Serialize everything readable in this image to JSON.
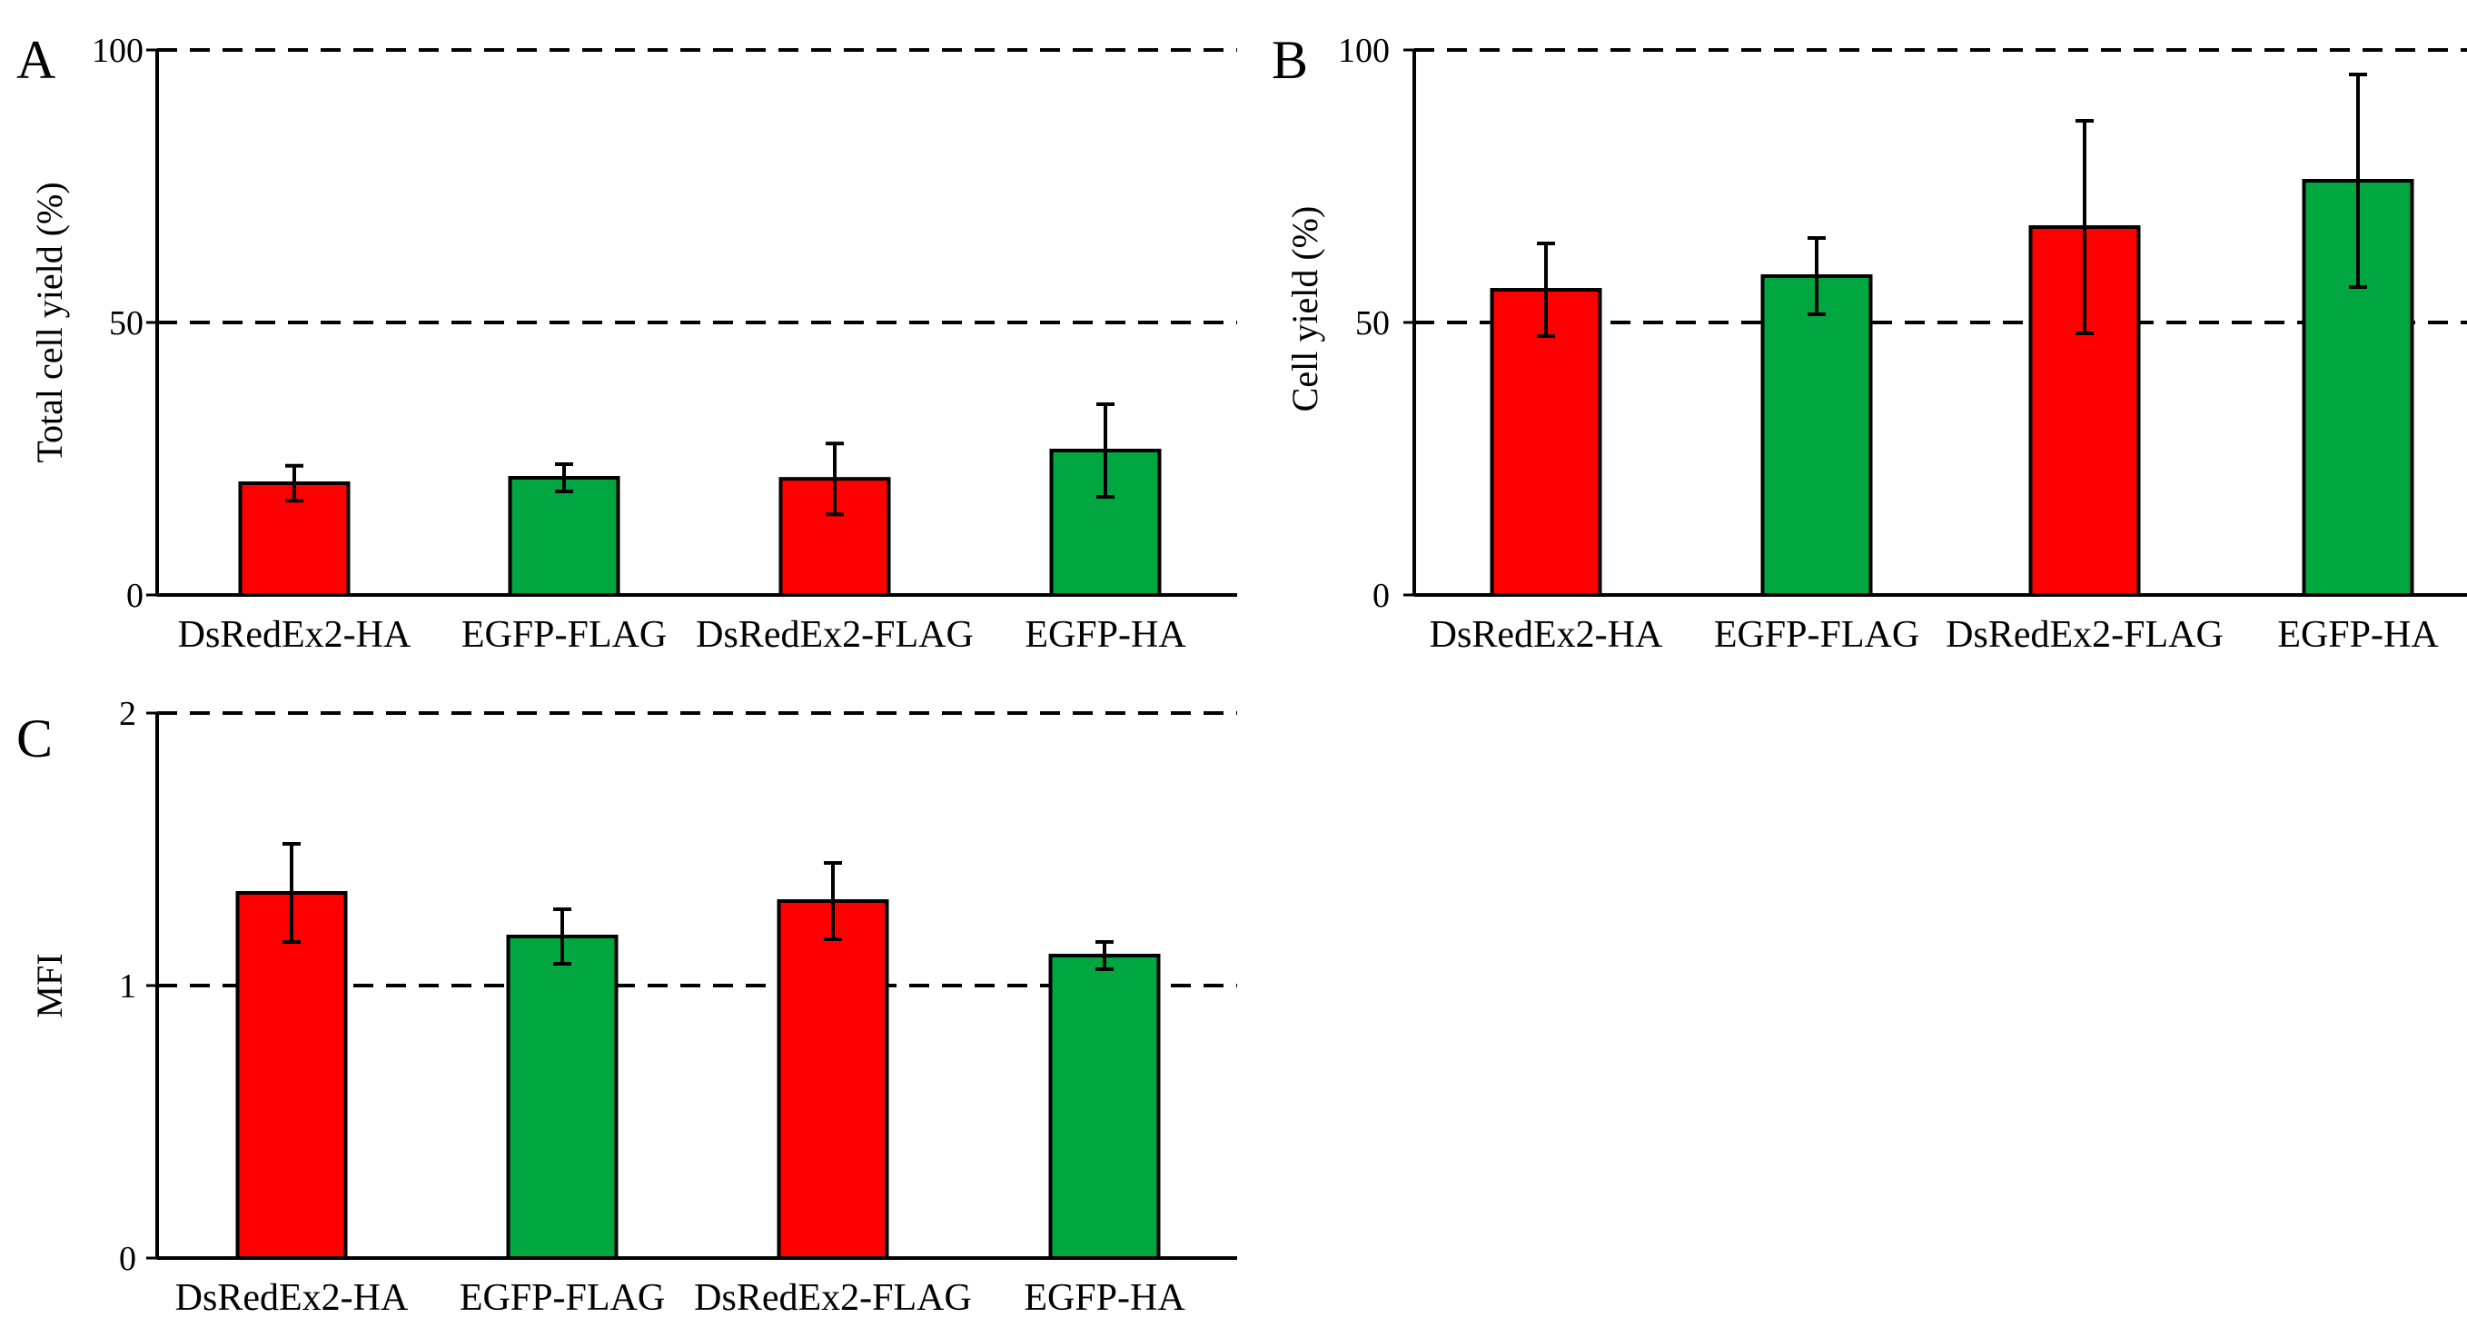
{
  "colors": {
    "red": "#ff0000",
    "green": "#00a63f",
    "axis": "#000000",
    "grid": "#000000"
  },
  "chart_data": [
    {
      "panel_label": "A",
      "type": "bar",
      "ylabel": "Total cell yield (%)",
      "ylim": [
        0,
        100
      ],
      "yticks": [
        "0",
        "50",
        "100"
      ],
      "ytick_values": [
        0,
        50,
        100
      ],
      "dashed_gridlines": [
        50,
        100
      ],
      "categories": [
        "DsRedEx2-HA",
        "EGFP-FLAG",
        "DsRedEx2-FLAG",
        "EGFP-HA"
      ],
      "values": [
        20.5,
        21.5,
        21.3,
        26.5
      ],
      "errors": [
        3.2,
        2.5,
        6.5,
        8.5
      ],
      "bar_colors": [
        "red",
        "green",
        "red",
        "green"
      ]
    },
    {
      "panel_label": "B",
      "type": "bar",
      "ylabel": "Cell yield (%)",
      "ylim": [
        0,
        100
      ],
      "yticks": [
        "0",
        "50",
        "100"
      ],
      "ytick_values": [
        0,
        50,
        100
      ],
      "dashed_gridlines": [
        50,
        100
      ],
      "categories": [
        "DsRedEx2-HA",
        "EGFP-FLAG",
        "DsRedEx2-FLAG",
        "EGFP-HA"
      ],
      "values": [
        56,
        58.5,
        67.5,
        76
      ],
      "errors": [
        8.5,
        7,
        19.5,
        19.5
      ],
      "bar_colors": [
        "red",
        "green",
        "red",
        "green"
      ]
    },
    {
      "panel_label": "C",
      "type": "bar",
      "ylabel": "MFI",
      "ylim": [
        0,
        2
      ],
      "yticks": [
        "0",
        "1",
        "2"
      ],
      "ytick_values": [
        0,
        1,
        2
      ],
      "dashed_gridlines": [
        1,
        2
      ],
      "categories": [
        "DsRedEx2-HA",
        "EGFP-FLAG",
        "DsRedEx2-FLAG",
        "EGFP-HA"
      ],
      "values": [
        1.34,
        1.18,
        1.31,
        1.11
      ],
      "errors": [
        0.18,
        0.1,
        0.14,
        0.05
      ],
      "bar_colors": [
        "red",
        "green",
        "red",
        "green"
      ]
    }
  ]
}
